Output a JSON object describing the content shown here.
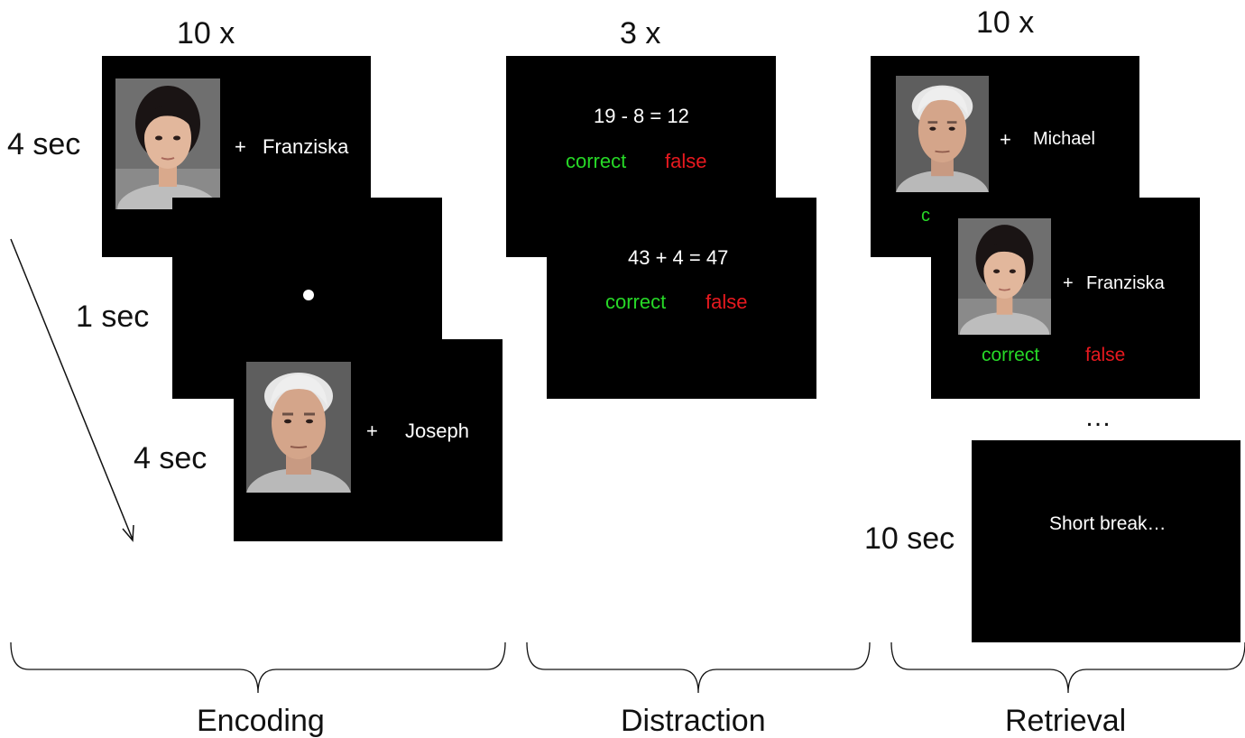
{
  "encoding": {
    "repeat": "10 x",
    "durations": {
      "face1": "4 sec",
      "fixation": "1 sec",
      "face2": "4 sec"
    },
    "slide1": {
      "plus": "+",
      "name": "Franziska"
    },
    "slide3": {
      "plus": "+",
      "name": "Joseph"
    },
    "phase_label": "Encoding"
  },
  "distraction": {
    "repeat": "3 x",
    "slide1": {
      "equation": "19 - 8 = 12",
      "correct": "correct",
      "false": "false"
    },
    "slide2": {
      "equation": "43 + 4 = 47",
      "correct": "correct",
      "false": "false"
    },
    "phase_label": "Distraction"
  },
  "retrieval": {
    "repeat": "10 x",
    "slide1": {
      "plus": "+",
      "name": "Michael",
      "partial_option": "c"
    },
    "slide2": {
      "plus": "+",
      "name": "Franziska",
      "correct": "correct",
      "false": "false"
    },
    "ellipsis": "…",
    "break_duration": "10 sec",
    "break_text": "Short break…",
    "phase_label": "Retrieval"
  },
  "colors": {
    "correct": "#27d827",
    "false": "#e8191f",
    "screen": "#000000"
  },
  "icons": [
    "female-face-photo",
    "male-face-photo",
    "fixation-dot",
    "time-arrow",
    "phase-brace"
  ]
}
